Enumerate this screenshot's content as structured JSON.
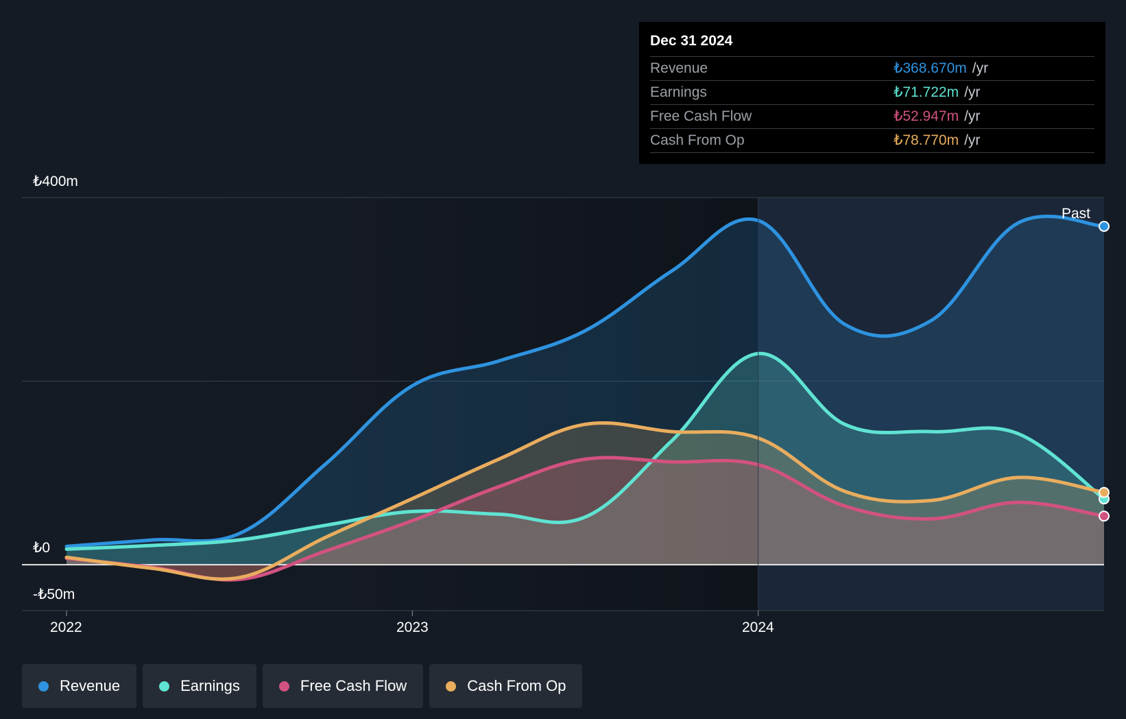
{
  "tooltip": {
    "date": "Dec 31 2024",
    "rows": [
      {
        "label": "Revenue",
        "value": "₺368.670m",
        "unit": "/yr",
        "color": "#2e93e0"
      },
      {
        "label": "Earnings",
        "value": "₺71.722m",
        "unit": "/yr",
        "color": "#5fe3d2"
      },
      {
        "label": "Free Cash Flow",
        "value": "₺52.947m",
        "unit": "/yr",
        "color": "#d2527f"
      },
      {
        "label": "Cash From Op",
        "value": "₺78.770m",
        "unit": "/yr",
        "color": "#e9ad5e"
      }
    ]
  },
  "past_label": "Past",
  "legend": [
    {
      "label": "Revenue",
      "color": "#2e93e0"
    },
    {
      "label": "Earnings",
      "color": "#5fe3d2"
    },
    {
      "label": "Free Cash Flow",
      "color": "#d2527f"
    },
    {
      "label": "Cash From Op",
      "color": "#e9ad5e"
    }
  ],
  "chart_data": {
    "type": "area",
    "title": "",
    "xlabel": "",
    "ylabel": "",
    "y_tick_labels": [
      "₺400m",
      "₺0",
      "-₺50m"
    ],
    "y_ticks": [
      400,
      0,
      -50
    ],
    "ylim": [
      -50,
      400
    ],
    "x_tick_labels": [
      "2022",
      "2023",
      "2024"
    ],
    "x_ticks": [
      2022.0,
      2023.0,
      2024.0
    ],
    "xlim": [
      2021.87,
      2025.0
    ],
    "past_start": 2024.0,
    "series": [
      {
        "name": "Revenue",
        "color": "#2e93e0",
        "x": [
          2022.0,
          2022.25,
          2022.5,
          2022.75,
          2023.0,
          2023.25,
          2023.5,
          2023.75,
          2024.0,
          2024.25,
          2024.5,
          2024.75,
          2025.0
        ],
        "values": [
          20,
          27,
          34,
          110,
          195,
          222,
          255,
          320,
          375,
          262,
          266,
          372,
          368.67
        ]
      },
      {
        "name": "Earnings",
        "color": "#5fe3d2",
        "x": [
          2022.0,
          2022.25,
          2022.5,
          2022.75,
          2023.0,
          2023.25,
          2023.5,
          2023.75,
          2024.0,
          2024.25,
          2024.5,
          2024.75,
          2025.0
        ],
        "values": [
          17,
          21,
          27,
          43,
          58,
          55,
          52,
          135,
          230,
          153,
          145,
          143,
          71.722
        ]
      },
      {
        "name": "Free Cash Flow",
        "color": "#d2527f",
        "x": [
          2022.0,
          2022.25,
          2022.5,
          2022.75,
          2023.0,
          2023.25,
          2023.5,
          2023.75,
          2024.0,
          2024.25,
          2024.5,
          2024.75,
          2025.0
        ],
        "values": [
          7,
          -3,
          -16,
          15,
          48,
          85,
          115,
          112,
          109,
          64,
          50,
          68,
          52.947
        ]
      },
      {
        "name": "Cash From Op",
        "color": "#e9ad5e",
        "x": [
          2022.0,
          2022.25,
          2022.5,
          2022.75,
          2023.0,
          2023.25,
          2023.5,
          2023.75,
          2024.0,
          2024.25,
          2024.5,
          2024.75,
          2025.0
        ],
        "values": [
          8,
          -4,
          -14,
          30,
          72,
          115,
          153,
          145,
          138,
          80,
          70,
          95,
          78.77
        ]
      }
    ]
  }
}
